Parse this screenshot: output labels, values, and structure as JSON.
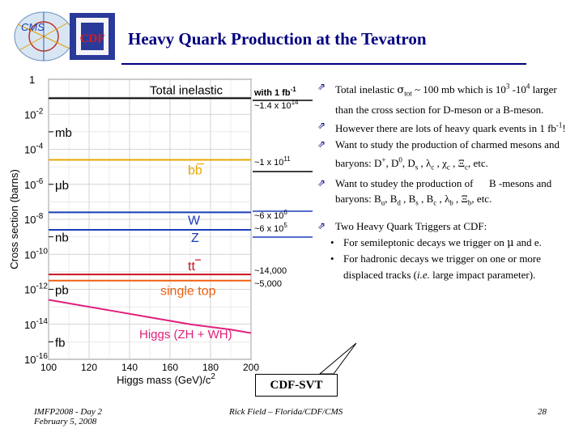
{
  "title": "Heavy Quark Production at the Tevatron",
  "logos": {
    "left": "CMS",
    "right": "CDF"
  },
  "chart_data": {
    "type": "line",
    "xlabel": "Higgs mass (GeV)/c",
    "xlabel_sup": "2",
    "ylabel": "Cross section (barns)",
    "xlim": [
      100,
      200
    ],
    "x_ticks": [
      "100",
      "120",
      "140",
      "160",
      "180",
      "200"
    ],
    "y_log_exponent_range": [
      0,
      -16
    ],
    "y_ticks": [
      {
        "base": "1",
        "exp": ""
      },
      {
        "base": "10",
        "exp": "-2"
      },
      {
        "base": "10",
        "exp": "-4"
      },
      {
        "base": "10",
        "exp": "-6"
      },
      {
        "base": "10",
        "exp": "-8"
      },
      {
        "base": "10",
        "exp": "-10"
      },
      {
        "base": "10",
        "exp": "-12"
      },
      {
        "base": "10",
        "exp": "-14"
      },
      {
        "base": "10",
        "exp": "-16"
      }
    ],
    "unit_markers": [
      {
        "label": "mb",
        "log10": -3
      },
      {
        "label": "μb",
        "log10": -6
      },
      {
        "label": "nb",
        "log10": -9
      },
      {
        "label": "pb",
        "log10": -12
      },
      {
        "label": "fb",
        "log10": -15
      }
    ],
    "series": [
      {
        "name": "Total inelastic",
        "color": "#000000",
        "log10_sigma": -1.08,
        "x": [
          100,
          200
        ]
      },
      {
        "name": "bb",
        "color": "#e6a800",
        "log10_sigma": -4.6,
        "x": [
          100,
          200
        ]
      },
      {
        "name": "W",
        "color": "#1a3db8",
        "log10_sigma": -7.6,
        "x": [
          100,
          200
        ]
      },
      {
        "name": "Z",
        "color": "#1a3db8",
        "log10_sigma": -8.6,
        "x": [
          100,
          200
        ]
      },
      {
        "name": "tt",
        "color": "#c8141e",
        "log10_sigma": -11.15,
        "x": [
          100,
          200
        ]
      },
      {
        "name": "single top",
        "color": "#f06010",
        "log10_sigma": -11.5,
        "x": [
          100,
          200
        ]
      },
      {
        "name": "Higgs (ZH + WH)",
        "color": "#e0207a",
        "x": [
          100,
          115,
          130,
          150,
          170,
          190,
          200
        ],
        "log10_sigma": [
          -12.6,
          -12.9,
          -13.2,
          -13.6,
          -14.0,
          -14.3,
          -14.5
        ]
      }
    ],
    "side_labels": [
      {
        "text": "with 1 fb",
        "sup": "-1"
      },
      {
        "text": "~1.4 x 10",
        "sup": "14"
      },
      {
        "text": "~1 x 10",
        "sup": "11"
      },
      {
        "text": "~6 x 10",
        "sup": "6"
      },
      {
        "text": "~6 x 10",
        "sup": "5"
      },
      {
        "text": "~14,000",
        "sup": ""
      },
      {
        "text": "~5,000",
        "sup": ""
      }
    ]
  },
  "bullets": [
    {
      "html": "Total inelastic <span style=\"font-family:'DejaVu Serif',serif;\">σ</span><sub style=\"font-size:9px\">tot</sub> ~ 100 mb which is 10<sup style=\"font-size:9px\">3</sup> -10<sup style=\"font-size:9px\">4</sup> larger than the cross section for D-meson or a B-meson."
    },
    {
      "html": "However there are lots of heavy quark events in 1 fb<sup style=\"font-size:9px\">-1</sup>!"
    },
    {
      "html": "Want to study the production of charmed mesons and baryons: D<sup style=\"font-size:9px\">+</sup>, D<sup style=\"font-size:9px\">0</sup>, D<sub style=\"font-size:9px\">s</sub> , λ<sub style=\"font-size:9px\">c</sub> , χ<sub style=\"font-size:9px\">c</sub> , Ξ<sub style=\"font-size:9px\">c</sub>, etc."
    },
    {
      "html": "Want to studey the production of &nbsp;&nbsp;&nbsp;&nbsp;&nbsp;B -mesons and baryons: B<sub style=\"font-size:9px\">u</sub>, B<sub style=\"font-size:9px\">d</sub> , B<sub style=\"font-size:9px\">s</sub> , B<sub style=\"font-size:9px\">c</sub> , λ<sub style=\"font-size:9px\">b</sub> , Ξ<sub style=\"font-size:9px\">b</sub>, etc."
    }
  ],
  "triggers": {
    "heading": "Two Heavy Quark Triggers at CDF:",
    "items": [
      {
        "html": "For semileptonic decays we trigger on <span style=\"font-family:'DejaVu Serif',serif;\">μ</span> and e."
      },
      {
        "html": "For hadronic decays we trigger on one or more displaced tracks (<i>i.e.</i> large impact parameter)."
      }
    ]
  },
  "callout": "CDF-SVT",
  "footer": {
    "left_line1": "IMFP2008 - Day 2",
    "left_line2": "February 5, 2008",
    "center": "Rick Field – Florida/CDF/CMS",
    "page": "28"
  }
}
